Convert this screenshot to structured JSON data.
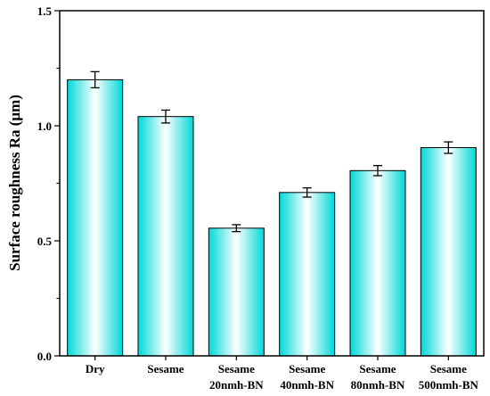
{
  "chart_data": {
    "type": "bar",
    "categories": [
      [
        "Dry"
      ],
      [
        "Sesame"
      ],
      [
        "Sesame",
        "20nmh-BN"
      ],
      [
        "Sesame",
        "40nmh-BN"
      ],
      [
        "Sesame",
        "80nmh-BN"
      ],
      [
        "Sesame",
        "500nmh-BN"
      ]
    ],
    "values": [
      1.2,
      1.04,
      0.555,
      0.71,
      0.805,
      0.905
    ],
    "errors": [
      0.035,
      0.028,
      0.015,
      0.02,
      0.022,
      0.025
    ],
    "ylabel": "Surface roughness Ra (μm)",
    "ylim": [
      0,
      1.5
    ],
    "yticks": [
      "0.0",
      "0.5",
      "1.0",
      "1.5"
    ],
    "ytick_values": [
      0,
      0.5,
      1.0,
      1.5
    ],
    "grid": false,
    "colors": {
      "bar_edge": "#00d8d8",
      "bar_center": "#ffffff",
      "outline": "#000000"
    }
  }
}
